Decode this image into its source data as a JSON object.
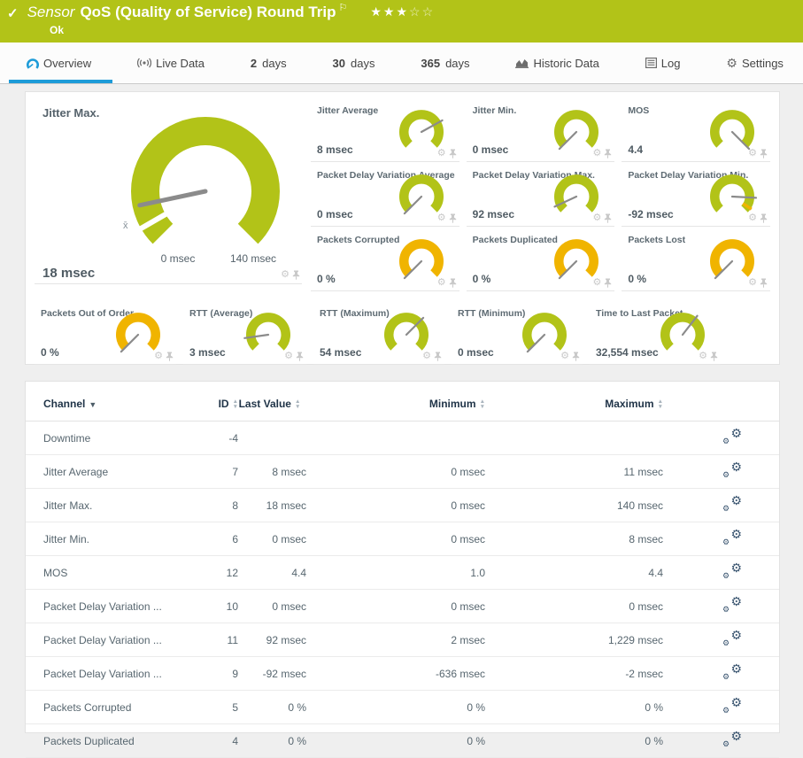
{
  "header": {
    "kind_label": "Sensor",
    "title": "QoS (Quality of Service) Round Trip",
    "status": "Ok",
    "rating": {
      "filled": 3,
      "empty": 2
    }
  },
  "tabs": [
    {
      "name": "overview",
      "icon": "gauge",
      "label": "Overview",
      "active": true
    },
    {
      "name": "live-data",
      "icon": "broadcast",
      "label": "Live Data"
    },
    {
      "name": "2-days",
      "strong": "2",
      "label": "days"
    },
    {
      "name": "30-days",
      "strong": "30",
      "label": "days"
    },
    {
      "name": "365-days",
      "strong": "365",
      "label": "days"
    },
    {
      "name": "historic-data",
      "icon": "chart",
      "label": "Historic Data"
    },
    {
      "name": "log",
      "icon": "log",
      "label": "Log"
    },
    {
      "name": "settings",
      "icon": "gear",
      "label": "Settings"
    }
  ],
  "chart_data": {
    "type": "gauge",
    "main_gauge": {
      "name": "Jitter Max.",
      "value": "18 msec",
      "value_num": 18,
      "range": [
        0,
        140
      ],
      "scale_min_label": "0 msec",
      "scale_max_label": "140 msec",
      "color": "green",
      "needle_deg": 168,
      "avg_marker_deg": 150,
      "avg_label": "x̄"
    },
    "small_gauges_grid": [
      {
        "name": "Jitter Average",
        "value": "8 msec",
        "color": "green",
        "needle_deg": 331
      },
      {
        "name": "Jitter Min.",
        "value": "0 msec",
        "color": "green",
        "needle_deg": 135
      },
      {
        "name": "MOS",
        "value": "4.4",
        "color": "green",
        "needle_deg": 45
      },
      {
        "name": "Packet Delay Variation Average",
        "value": "0 msec",
        "color": "green",
        "needle_deg": 135
      },
      {
        "name": "Packet Delay Variation Max.",
        "value": "92 msec",
        "color": "green",
        "needle_deg": 155
      },
      {
        "name": "Packet Delay Variation Min.",
        "value": "-92 msec",
        "color": "green",
        "needle_deg": 3,
        "marker_deg": 33,
        "marker_color": "#f0b400"
      },
      {
        "name": "Packets Corrupted",
        "value": "0 %",
        "color": "yellow",
        "needle_deg": 135
      },
      {
        "name": "Packets Duplicated",
        "value": "0 %",
        "color": "yellow",
        "needle_deg": 135
      },
      {
        "name": "Packets Lost",
        "value": "0 %",
        "color": "yellow",
        "needle_deg": 135
      }
    ],
    "bottom_gauges": [
      {
        "name": "Packets Out of Order",
        "value": "0 %",
        "color": "yellow",
        "needle_deg": 135
      },
      {
        "name": "RTT (Average)",
        "value": "3 msec",
        "color": "green",
        "needle_deg": 172
      },
      {
        "name": "RTT (Maximum)",
        "value": "54 msec",
        "color": "green",
        "needle_deg": 315
      },
      {
        "name": "RTT (Minimum)",
        "value": "0 msec",
        "color": "green",
        "needle_deg": 135
      },
      {
        "name": "Time to Last Packet",
        "value": "32,554 msec",
        "color": "green",
        "needle_deg": 308
      }
    ]
  },
  "table": {
    "columns": [
      {
        "key": "c-ch",
        "label": "Channel",
        "sort": "active"
      },
      {
        "key": "c-id",
        "label": "ID",
        "sort": "both"
      },
      {
        "key": "c-last",
        "label": "Last Value",
        "sort": "both"
      },
      {
        "key": "c-min",
        "label": "Minimum",
        "sort": "both"
      },
      {
        "key": "c-max",
        "label": "Maximum",
        "sort": "both"
      },
      {
        "key": "c-act",
        "label": "",
        "sort": "none"
      }
    ],
    "rows": [
      {
        "channel": "Downtime",
        "id": "-4",
        "last": "",
        "min": "",
        "max": ""
      },
      {
        "channel": "Jitter Average",
        "id": "7",
        "last": "8 msec",
        "min": "0 msec",
        "max": "11 msec"
      },
      {
        "channel": "Jitter Max.",
        "id": "8",
        "last": "18 msec",
        "min": "0 msec",
        "max": "140 msec"
      },
      {
        "channel": "Jitter Min.",
        "id": "6",
        "last": "0 msec",
        "min": "0 msec",
        "max": "8 msec"
      },
      {
        "channel": "MOS",
        "id": "12",
        "last": "4.4",
        "min": "1.0",
        "max": "4.4"
      },
      {
        "channel": "Packet Delay Variation ...",
        "id": "10",
        "last": "0 msec",
        "min": "0 msec",
        "max": "0 msec"
      },
      {
        "channel": "Packet Delay Variation ...",
        "id": "11",
        "last": "92 msec",
        "min": "2 msec",
        "max": "1,229 msec"
      },
      {
        "channel": "Packet Delay Variation ...",
        "id": "9",
        "last": "-92 msec",
        "min": "-636 msec",
        "max": "-2 msec"
      },
      {
        "channel": "Packets Corrupted",
        "id": "5",
        "last": "0 %",
        "min": "0 %",
        "max": "0 %"
      },
      {
        "channel": "Packets Duplicated",
        "id": "4",
        "last": "0 %",
        "min": "0 %",
        "max": "0 %"
      }
    ]
  },
  "icons": {
    "header_check": "check-icon",
    "header_flag": "flag-icon",
    "tile_footer": [
      "gear-icon",
      "pin-icon"
    ],
    "row_action": "channel-settings-gears-icon"
  },
  "colors": {
    "green": "#b2c318",
    "yellow": "#f0b400",
    "accent_blue": "#1d9bd8",
    "needle": "#8b8b8b"
  }
}
